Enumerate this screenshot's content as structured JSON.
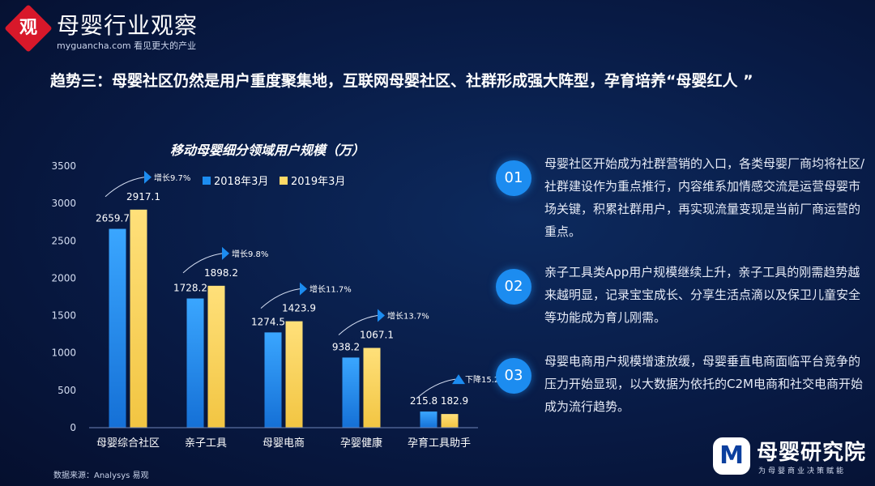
{
  "brand": {
    "seal": "观",
    "name": "母婴行业观察",
    "url": "myguancha.com 看见更大的产业"
  },
  "headline": "趋势三：母婴社区仍然是用户重度聚集地，互联网母婴社区、社群形成强大阵型，孕育培养“母婴红人 ”",
  "chart_data": {
    "type": "bar",
    "title": "移动母婴细分领域用户规模（万）",
    "xlabel": "",
    "ylabel": "",
    "categories": [
      "母婴综合社区",
      "亲子工具",
      "母婴电商",
      "孕婴健康",
      "孕育工具助手"
    ],
    "series": [
      {
        "name": "2018年3月",
        "values": [
          2659.7,
          1728.2,
          1274.5,
          938.2,
          215.8
        ]
      },
      {
        "name": "2019年3月",
        "values": [
          2917.1,
          1898.2,
          1423.9,
          1067.1,
          182.9
        ]
      }
    ],
    "growth_labels": [
      "增长9.7%",
      "增长9.8%",
      "增长11.7%",
      "增长13.7%",
      "下降15.2%"
    ],
    "yticks": [
      0,
      500,
      1000,
      1500,
      2000,
      2500,
      3000,
      3500
    ],
    "ylim": [
      0,
      3500
    ],
    "legend_position": "top",
    "grid": false
  },
  "colors": {
    "series_2018": "#1c8cf0",
    "series_2019": "#ffd966",
    "accent": "#1c8cf0"
  },
  "points": [
    {
      "num": "01",
      "text": "母婴社区开始成为社群营销的入口，各类母婴厂商均将社区/社群建设作为重点推行，内容维系加情感交流是运营母婴市场关键，积累社群用户，再实现流量变现是当前厂商运营的重点。"
    },
    {
      "num": "02",
      "text": "亲子工具类App用户规模继续上升，亲子工具的刚需趋势越来越明显，记录宝宝成长、分享生活点滴以及保卫儿童安全等功能成为育儿刚需。"
    },
    {
      "num": "03",
      "text": "母婴电商用户规模增速放缓，母婴垂直电商面临平台竞争的压力开始显现，以大数据为依托的C2M电商和社交电商开始成为流行趋势。"
    }
  ],
  "source": "数据来源：Analysys 易观",
  "logo": {
    "mark": "M",
    "name": "母婴研究院",
    "tagline": "为母婴商业决策赋能"
  }
}
